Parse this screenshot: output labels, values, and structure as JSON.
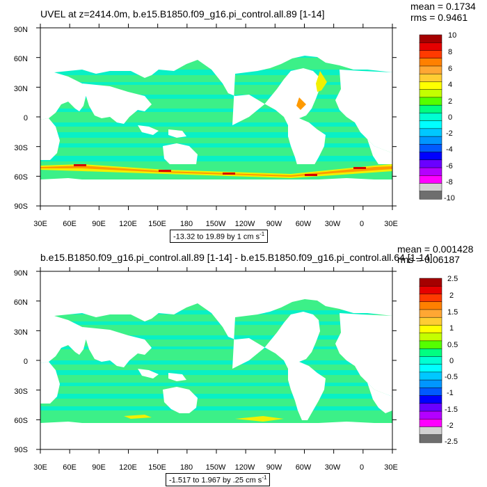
{
  "panels": [
    {
      "title": "UVEL at z=2414.0m, b.e15.B1850.f09_g16.pi_control.all.89 [1-14]",
      "mean": "mean = 0.1734",
      "rms": "rms = 0.9461",
      "range_text": "-13.32 to 19.89 by 1 cm s",
      "range_exp": "-1",
      "colorbar_labels": [
        "10",
        "8",
        "6",
        "4",
        "2",
        "0",
        "-2",
        "-4",
        "-6",
        "-8",
        "-10"
      ]
    },
    {
      "title": "b.e15.B1850.f09_g16.pi_control.all.89 [1-14] - b.e15.B1850.f09_g16.pi_control.all.64 [1-14]",
      "mean": "mean = 0.001428",
      "rms": "rms = 0.06187",
      "range_text": "-1.517 to 1.967 by .25 cm s",
      "range_exp": "-1",
      "colorbar_labels": [
        "2.5",
        "2",
        "1.5",
        "1",
        "0.5",
        "0",
        "-0.5",
        "-1",
        "-1.5",
        "-2",
        "-2.5"
      ]
    }
  ],
  "lat_labels": [
    "90N",
    "60N",
    "30N",
    "0",
    "30S",
    "60S",
    "90S"
  ],
  "lon_labels": [
    "30E",
    "60E",
    "90E",
    "120E",
    "150E",
    "180",
    "150W",
    "120W",
    "90W",
    "60W",
    "30W",
    "0",
    "30E"
  ],
  "colorbar_colors": [
    "#a50000",
    "#e60000",
    "#ff3a00",
    "#ff8000",
    "#ffa733",
    "#ffcd33",
    "#ffff00",
    "#c4ff00",
    "#55ff00",
    "#00ff80",
    "#00ffd2",
    "#00ffff",
    "#00c8ff",
    "#0096ff",
    "#005aff",
    "#0000ff",
    "#6a00ff",
    "#b400ff",
    "#ff00ff",
    "#d2d2d2",
    "#6e6e6e"
  ],
  "map_colors": {
    "ocean": "#3cf088",
    "ocean_alt": "#00f0d0",
    "jet_yellow": "#f2f000",
    "jet_orange": "#ff9a00",
    "jet_red": "#d40000",
    "land": "#ffffff"
  }
}
